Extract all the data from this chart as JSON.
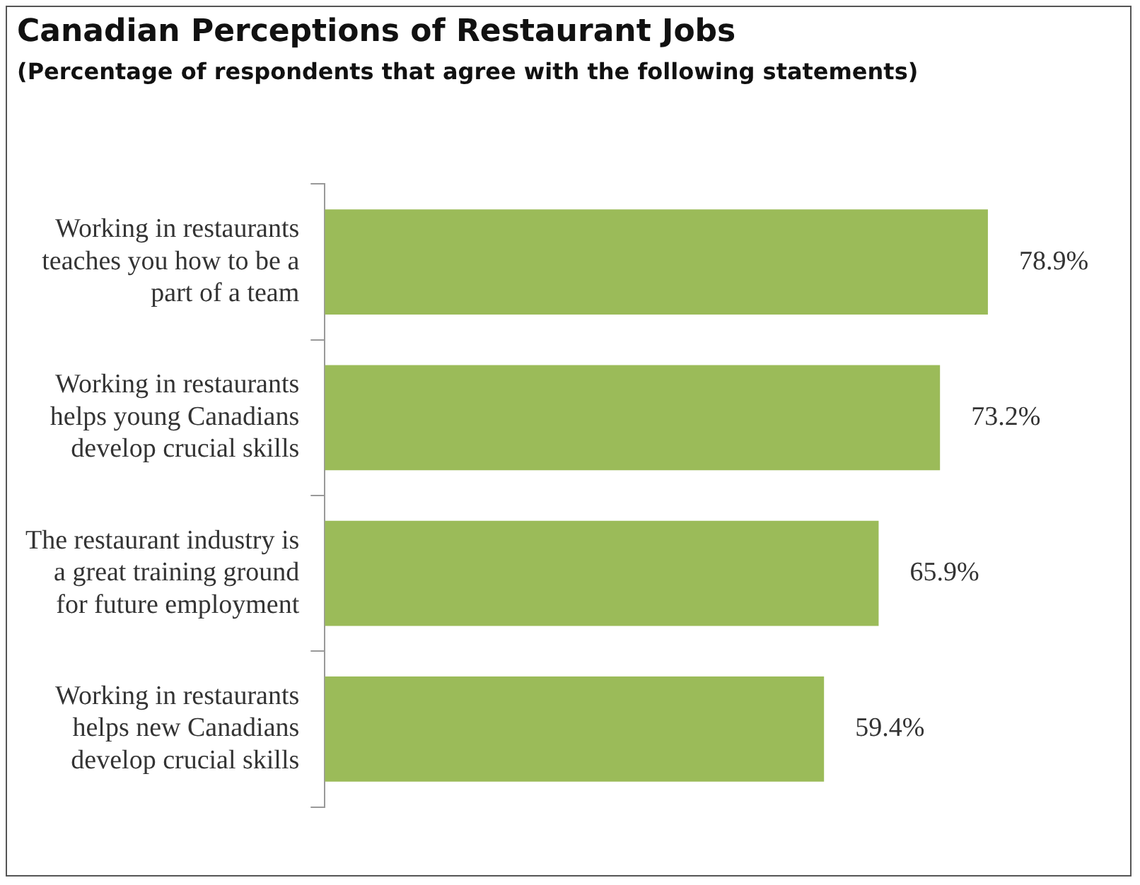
{
  "chart_data": {
    "type": "bar",
    "orientation": "horizontal",
    "title": "Canadian Perceptions of Restaurant Jobs",
    "subtitle": "(Percentage of respondents that agree with the following statements)",
    "categories": [
      "Working in restaurants teaches you how to be a part of a team",
      "Working in restaurants helps young Canadians develop crucial skills",
      "The restaurant industry is a great training ground for future employment",
      "Working in restaurants helps new Canadians develop crucial skills"
    ],
    "values": [
      78.9,
      73.2,
      65.9,
      59.4
    ],
    "value_labels": [
      "78.9%",
      "73.2%",
      "65.9%",
      "59.4%"
    ],
    "color": "#9bbb59",
    "legend": false
  }
}
